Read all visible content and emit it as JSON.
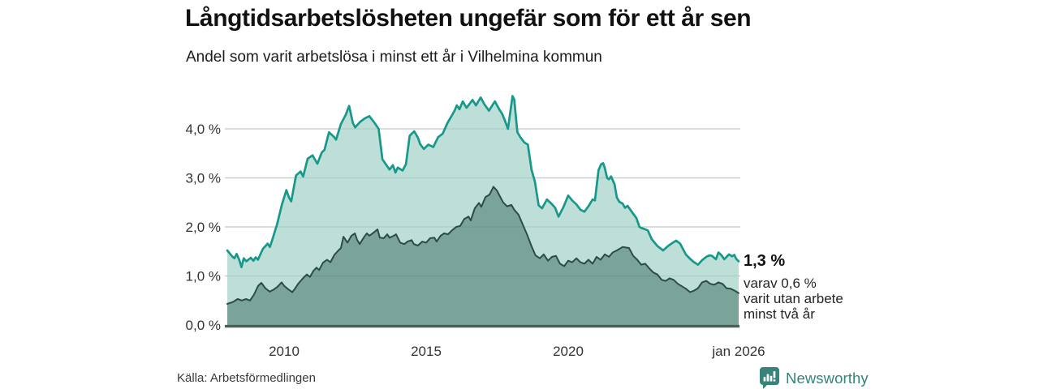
{
  "title": "Långtidsarbetslösheten ungefär som för ett år sen",
  "subtitle": "Andel som varit arbetslösa i minst ett år i Vilhelmina kommun",
  "source": "Källa: Arbetsförmedlingen",
  "brand": {
    "name": "Newsworthy",
    "color": "#35837b"
  },
  "annotation": {
    "value_label": "1,3 %",
    "sub_lines": [
      "varav 0,6 %",
      "varit utan arbete",
      "minst två år"
    ]
  },
  "colors": {
    "gridline": "#d8d8d8",
    "gridline_overlay": "rgba(30,55,48,0.10)",
    "axis_baseline": "#4e5e59",
    "tick_text": "#333333",
    "total_line": "#16988a",
    "total_fill": "#bddfd8",
    "two_year_line": "#2c4c46",
    "two_year_fill": "#7aa49a"
  },
  "chart_data": {
    "type": "area",
    "title": "Långtidsarbetslösheten ungefär som för ett år sen",
    "subtitle": "Andel som varit arbetslösa i minst ett år i Vilhelmina kommun",
    "unit": "%",
    "grid": true,
    "legend_position": "none",
    "x_axis": {
      "min": 2008.0,
      "max": 2026.0,
      "ticks": [
        {
          "year": 2010,
          "label": "2010"
        },
        {
          "year": 2015,
          "label": "2015"
        },
        {
          "year": 2020,
          "label": "2020"
        },
        {
          "year": 2026,
          "label": "jan 2026"
        }
      ]
    },
    "y_axis": {
      "min": 0,
      "max": 4.9,
      "ticks": [
        {
          "value": 0,
          "label": "0,0 %"
        },
        {
          "value": 1,
          "label": "1,0 %"
        },
        {
          "value": 2,
          "label": "2,0 %"
        },
        {
          "value": 3,
          "label": "3,0 %"
        },
        {
          "value": 4,
          "label": "4,0 %"
        }
      ]
    },
    "end_labels": {
      "total": "1,3 %",
      "two_year": "0,6 %"
    },
    "series": [
      {
        "name": "Andel arbetslösa minst ett år",
        "last_value": 1.3,
        "points": [
          [
            2008.0,
            1.52
          ],
          [
            2008.17,
            1.4
          ],
          [
            2008.25,
            1.36
          ],
          [
            2008.33,
            1.45
          ],
          [
            2008.42,
            1.33
          ],
          [
            2008.5,
            1.18
          ],
          [
            2008.58,
            1.36
          ],
          [
            2008.67,
            1.3
          ],
          [
            2008.83,
            1.37
          ],
          [
            2008.92,
            1.31
          ],
          [
            2009.0,
            1.38
          ],
          [
            2009.08,
            1.33
          ],
          [
            2009.25,
            1.55
          ],
          [
            2009.42,
            1.66
          ],
          [
            2009.5,
            1.59
          ],
          [
            2009.58,
            1.73
          ],
          [
            2009.75,
            2.05
          ],
          [
            2009.92,
            2.45
          ],
          [
            2010.08,
            2.75
          ],
          [
            2010.17,
            2.6
          ],
          [
            2010.25,
            2.52
          ],
          [
            2010.42,
            3.05
          ],
          [
            2010.58,
            3.13
          ],
          [
            2010.67,
            3.03
          ],
          [
            2010.83,
            3.39
          ],
          [
            2011.0,
            3.46
          ],
          [
            2011.17,
            3.29
          ],
          [
            2011.33,
            3.52
          ],
          [
            2011.42,
            3.57
          ],
          [
            2011.58,
            3.93
          ],
          [
            2011.75,
            3.84
          ],
          [
            2011.83,
            3.78
          ],
          [
            2012.0,
            4.1
          ],
          [
            2012.17,
            4.29
          ],
          [
            2012.29,
            4.47
          ],
          [
            2012.42,
            4.12
          ],
          [
            2012.5,
            4.03
          ],
          [
            2012.67,
            4.14
          ],
          [
            2012.83,
            4.21
          ],
          [
            2013.0,
            4.26
          ],
          [
            2013.17,
            4.13
          ],
          [
            2013.33,
            4.0
          ],
          [
            2013.46,
            3.38
          ],
          [
            2013.58,
            3.28
          ],
          [
            2013.71,
            3.17
          ],
          [
            2013.83,
            3.26
          ],
          [
            2013.92,
            3.11
          ],
          [
            2014.0,
            3.21
          ],
          [
            2014.17,
            3.15
          ],
          [
            2014.29,
            3.28
          ],
          [
            2014.42,
            3.86
          ],
          [
            2014.58,
            3.95
          ],
          [
            2014.71,
            3.82
          ],
          [
            2014.79,
            3.69
          ],
          [
            2014.92,
            3.59
          ],
          [
            2015.08,
            3.68
          ],
          [
            2015.25,
            3.63
          ],
          [
            2015.42,
            3.83
          ],
          [
            2015.58,
            3.9
          ],
          [
            2015.75,
            4.12
          ],
          [
            2015.88,
            4.25
          ],
          [
            2016.0,
            4.37
          ],
          [
            2016.08,
            4.48
          ],
          [
            2016.17,
            4.4
          ],
          [
            2016.29,
            4.56
          ],
          [
            2016.42,
            4.43
          ],
          [
            2016.5,
            4.49
          ],
          [
            2016.63,
            4.59
          ],
          [
            2016.75,
            4.48
          ],
          [
            2016.92,
            4.64
          ],
          [
            2017.04,
            4.51
          ],
          [
            2017.21,
            4.37
          ],
          [
            2017.33,
            4.48
          ],
          [
            2017.42,
            4.56
          ],
          [
            2017.58,
            4.39
          ],
          [
            2017.67,
            4.31
          ],
          [
            2017.75,
            4.2
          ],
          [
            2017.88,
            4.0
          ],
          [
            2018.04,
            4.67
          ],
          [
            2018.1,
            4.6
          ],
          [
            2018.21,
            3.93
          ],
          [
            2018.33,
            3.82
          ],
          [
            2018.46,
            3.72
          ],
          [
            2018.58,
            3.68
          ],
          [
            2018.71,
            3.16
          ],
          [
            2018.83,
            2.92
          ],
          [
            2018.96,
            2.44
          ],
          [
            2019.08,
            2.38
          ],
          [
            2019.25,
            2.56
          ],
          [
            2019.42,
            2.47
          ],
          [
            2019.54,
            2.39
          ],
          [
            2019.66,
            2.21
          ],
          [
            2019.83,
            2.4
          ],
          [
            2020.0,
            2.64
          ],
          [
            2020.14,
            2.54
          ],
          [
            2020.29,
            2.46
          ],
          [
            2020.43,
            2.35
          ],
          [
            2020.57,
            2.31
          ],
          [
            2020.71,
            2.42
          ],
          [
            2020.86,
            2.56
          ],
          [
            2020.94,
            2.54
          ],
          [
            2021.07,
            3.16
          ],
          [
            2021.16,
            3.28
          ],
          [
            2021.23,
            3.3
          ],
          [
            2021.29,
            3.2
          ],
          [
            2021.37,
            3.0
          ],
          [
            2021.43,
            2.97
          ],
          [
            2021.51,
            3.03
          ],
          [
            2021.63,
            2.87
          ],
          [
            2021.71,
            2.6
          ],
          [
            2021.8,
            2.51
          ],
          [
            2021.91,
            2.48
          ],
          [
            2022.0,
            2.39
          ],
          [
            2022.09,
            2.43
          ],
          [
            2022.2,
            2.34
          ],
          [
            2022.3,
            2.26
          ],
          [
            2022.4,
            2.18
          ],
          [
            2022.51,
            2.0
          ],
          [
            2022.57,
            1.98
          ],
          [
            2022.71,
            1.95
          ],
          [
            2022.8,
            1.93
          ],
          [
            2022.94,
            1.75
          ],
          [
            2023.14,
            1.61
          ],
          [
            2023.34,
            1.52
          ],
          [
            2023.49,
            1.6
          ],
          [
            2023.63,
            1.66
          ],
          [
            2023.8,
            1.72
          ],
          [
            2023.94,
            1.66
          ],
          [
            2024.14,
            1.44
          ],
          [
            2024.29,
            1.35
          ],
          [
            2024.43,
            1.28
          ],
          [
            2024.57,
            1.23
          ],
          [
            2024.71,
            1.32
          ],
          [
            2024.86,
            1.39
          ],
          [
            2024.97,
            1.42
          ],
          [
            2025.06,
            1.41
          ],
          [
            2025.2,
            1.34
          ],
          [
            2025.29,
            1.48
          ],
          [
            2025.4,
            1.42
          ],
          [
            2025.49,
            1.34
          ],
          [
            2025.66,
            1.44
          ],
          [
            2025.77,
            1.4
          ],
          [
            2025.85,
            1.43
          ],
          [
            2025.91,
            1.35
          ],
          [
            2026.0,
            1.3
          ]
        ]
      },
      {
        "name": "varav utan arbete minst två år",
        "last_value": 0.6,
        "points": [
          [
            2008.0,
            0.43
          ],
          [
            2008.2,
            0.47
          ],
          [
            2008.37,
            0.53
          ],
          [
            2008.51,
            0.5
          ],
          [
            2008.66,
            0.53
          ],
          [
            2008.8,
            0.5
          ],
          [
            2008.94,
            0.62
          ],
          [
            2009.09,
            0.8
          ],
          [
            2009.2,
            0.86
          ],
          [
            2009.34,
            0.75
          ],
          [
            2009.49,
            0.68
          ],
          [
            2009.63,
            0.72
          ],
          [
            2009.77,
            0.78
          ],
          [
            2009.91,
            0.87
          ],
          [
            2010.0,
            0.8
          ],
          [
            2010.14,
            0.73
          ],
          [
            2010.29,
            0.67
          ],
          [
            2010.37,
            0.73
          ],
          [
            2010.51,
            0.85
          ],
          [
            2010.66,
            0.95
          ],
          [
            2010.8,
            1.03
          ],
          [
            2010.91,
            0.98
          ],
          [
            2011.03,
            1.1
          ],
          [
            2011.14,
            1.17
          ],
          [
            2011.23,
            1.12
          ],
          [
            2011.37,
            1.27
          ],
          [
            2011.51,
            1.33
          ],
          [
            2011.63,
            1.28
          ],
          [
            2011.77,
            1.43
          ],
          [
            2011.91,
            1.52
          ],
          [
            2012.0,
            1.57
          ],
          [
            2012.09,
            1.8
          ],
          [
            2012.23,
            1.68
          ],
          [
            2012.37,
            1.82
          ],
          [
            2012.49,
            1.87
          ],
          [
            2012.57,
            1.74
          ],
          [
            2012.66,
            1.65
          ],
          [
            2012.8,
            1.78
          ],
          [
            2012.91,
            1.87
          ],
          [
            2013.0,
            1.82
          ],
          [
            2013.14,
            1.88
          ],
          [
            2013.29,
            1.95
          ],
          [
            2013.37,
            1.78
          ],
          [
            2013.51,
            1.77
          ],
          [
            2013.63,
            1.85
          ],
          [
            2013.71,
            1.78
          ],
          [
            2013.86,
            1.82
          ],
          [
            2013.94,
            1.85
          ],
          [
            2014.09,
            1.68
          ],
          [
            2014.23,
            1.65
          ],
          [
            2014.34,
            1.7
          ],
          [
            2014.49,
            1.73
          ],
          [
            2014.57,
            1.65
          ],
          [
            2014.71,
            1.62
          ],
          [
            2014.86,
            1.7
          ],
          [
            2015.0,
            1.68
          ],
          [
            2015.14,
            1.77
          ],
          [
            2015.29,
            1.78
          ],
          [
            2015.37,
            1.7
          ],
          [
            2015.51,
            1.82
          ],
          [
            2015.63,
            1.87
          ],
          [
            2015.77,
            1.85
          ],
          [
            2015.91,
            1.93
          ],
          [
            2016.06,
            2.0
          ],
          [
            2016.2,
            2.02
          ],
          [
            2016.34,
            2.16
          ],
          [
            2016.49,
            2.21
          ],
          [
            2016.57,
            2.13
          ],
          [
            2016.71,
            2.38
          ],
          [
            2016.86,
            2.49
          ],
          [
            2016.94,
            2.41
          ],
          [
            2017.09,
            2.61
          ],
          [
            2017.23,
            2.66
          ],
          [
            2017.37,
            2.82
          ],
          [
            2017.49,
            2.74
          ],
          [
            2017.6,
            2.62
          ],
          [
            2017.71,
            2.5
          ],
          [
            2017.85,
            2.42
          ],
          [
            2018.0,
            2.45
          ],
          [
            2018.1,
            2.35
          ],
          [
            2018.25,
            2.25
          ],
          [
            2018.4,
            2.05
          ],
          [
            2018.55,
            1.85
          ],
          [
            2018.7,
            1.62
          ],
          [
            2018.85,
            1.42
          ],
          [
            2019.0,
            1.36
          ],
          [
            2019.14,
            1.44
          ],
          [
            2019.29,
            1.31
          ],
          [
            2019.43,
            1.39
          ],
          [
            2019.57,
            1.41
          ],
          [
            2019.71,
            1.25
          ],
          [
            2019.86,
            1.2
          ],
          [
            2020.0,
            1.31
          ],
          [
            2020.14,
            1.28
          ],
          [
            2020.29,
            1.36
          ],
          [
            2020.43,
            1.28
          ],
          [
            2020.57,
            1.25
          ],
          [
            2020.71,
            1.33
          ],
          [
            2020.86,
            1.25
          ],
          [
            2021.0,
            1.39
          ],
          [
            2021.14,
            1.33
          ],
          [
            2021.29,
            1.44
          ],
          [
            2021.43,
            1.39
          ],
          [
            2021.57,
            1.48
          ],
          [
            2021.71,
            1.52
          ],
          [
            2021.91,
            1.59
          ],
          [
            2022.14,
            1.57
          ],
          [
            2022.29,
            1.41
          ],
          [
            2022.43,
            1.33
          ],
          [
            2022.57,
            1.23
          ],
          [
            2022.71,
            1.25
          ],
          [
            2022.86,
            1.15
          ],
          [
            2023.0,
            1.07
          ],
          [
            2023.14,
            1.03
          ],
          [
            2023.29,
            0.92
          ],
          [
            2023.43,
            0.9
          ],
          [
            2023.57,
            0.95
          ],
          [
            2023.71,
            0.92
          ],
          [
            2023.86,
            0.84
          ],
          [
            2024.0,
            0.79
          ],
          [
            2024.14,
            0.74
          ],
          [
            2024.29,
            0.67
          ],
          [
            2024.43,
            0.7
          ],
          [
            2024.57,
            0.75
          ],
          [
            2024.71,
            0.87
          ],
          [
            2024.86,
            0.9
          ],
          [
            2025.0,
            0.84
          ],
          [
            2025.14,
            0.82
          ],
          [
            2025.29,
            0.87
          ],
          [
            2025.43,
            0.84
          ],
          [
            2025.57,
            0.75
          ],
          [
            2025.71,
            0.74
          ],
          [
            2025.86,
            0.7
          ],
          [
            2026.0,
            0.65
          ]
        ]
      }
    ]
  }
}
